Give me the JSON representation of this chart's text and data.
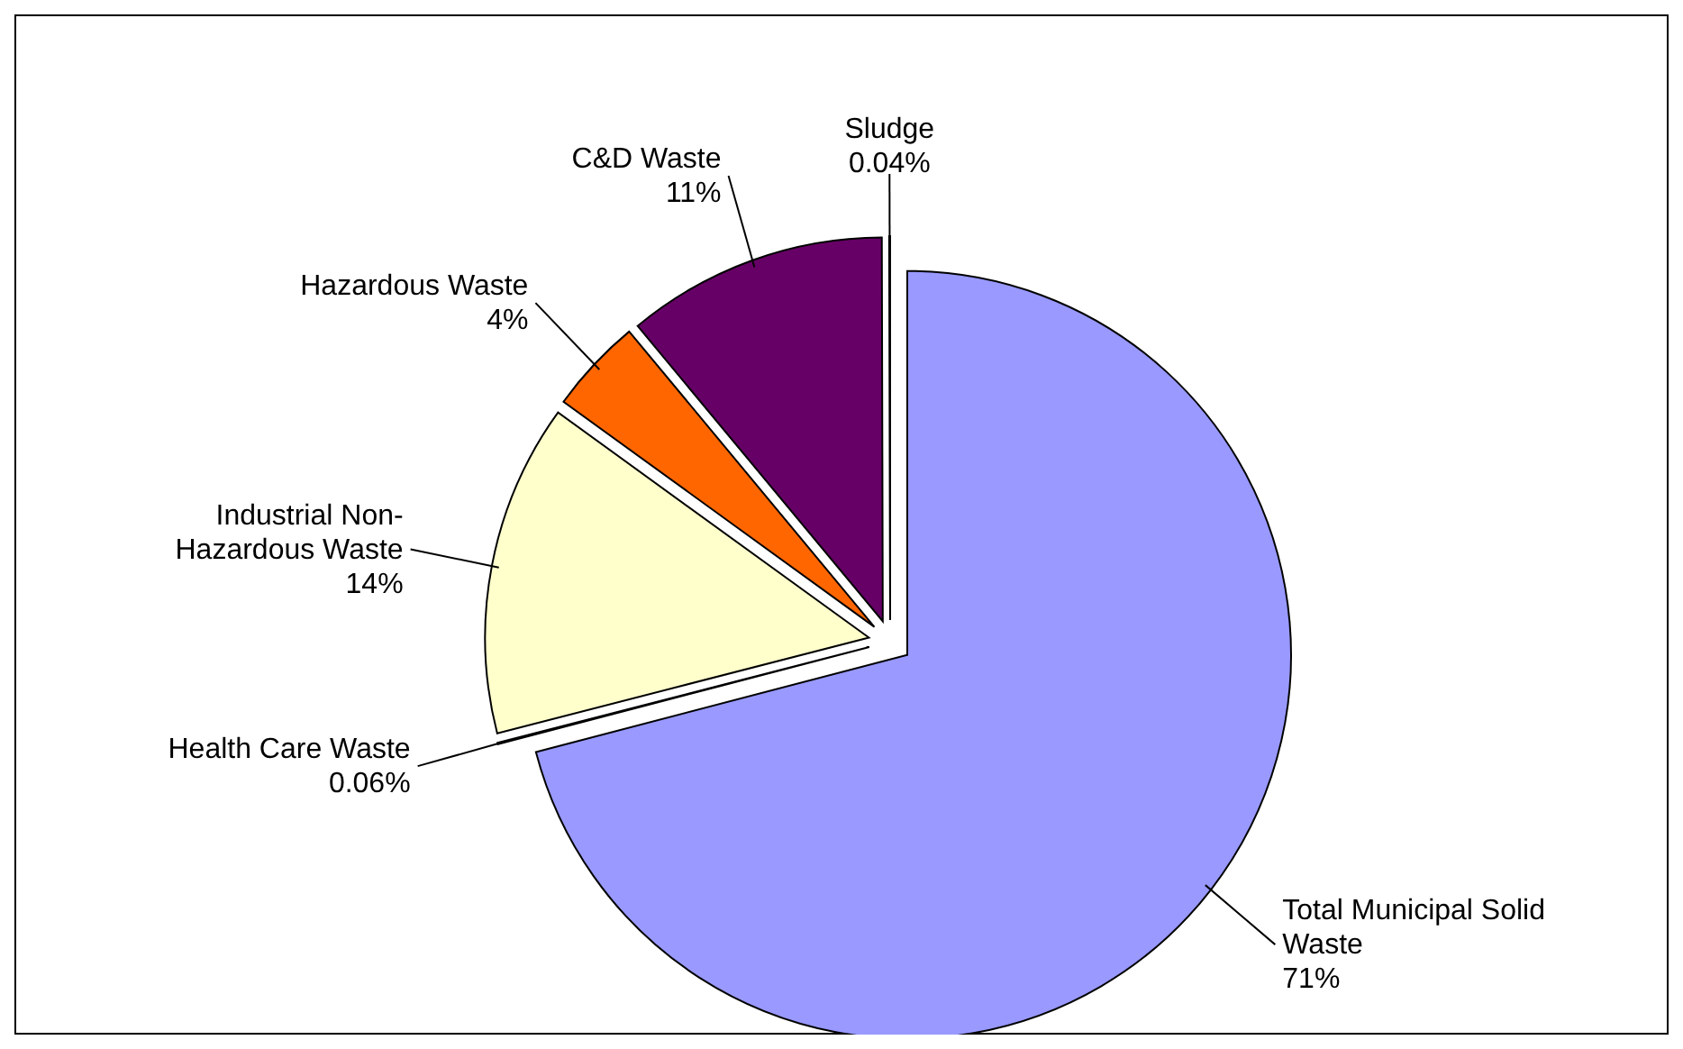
{
  "chart_data": {
    "type": "pie",
    "categories": [
      "Total Municipal Solid Waste",
      "Health Care Waste",
      "Industrial Non-Hazardous Waste",
      "Hazardous Waste",
      "C&D Waste",
      "Sludge"
    ],
    "values": [
      71,
      0.06,
      14,
      4,
      11,
      0.04
    ],
    "colors": [
      "#9999ff",
      "#993366",
      "#ffffcc",
      "#ff6600",
      "#660066",
      "#333399"
    ],
    "value_labels": [
      "71%",
      "0.06%",
      "14%",
      "4%",
      "11%",
      "0.04%"
    ]
  }
}
